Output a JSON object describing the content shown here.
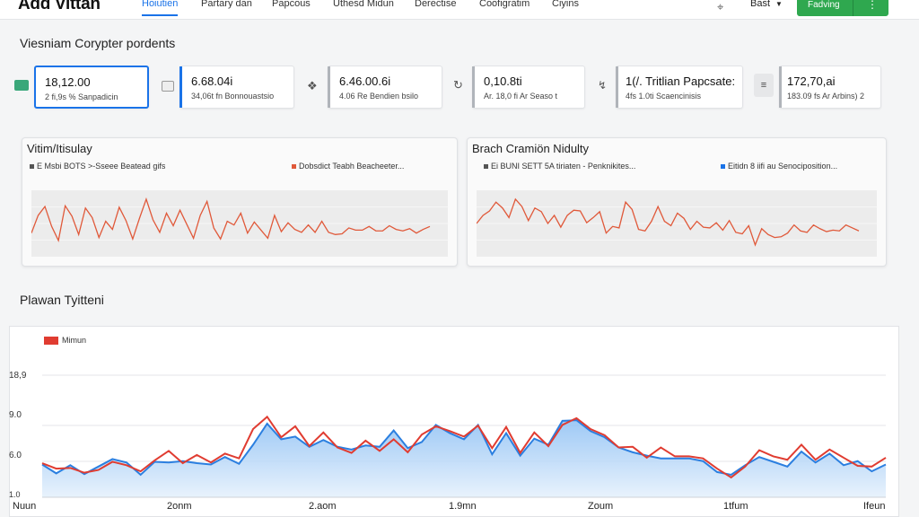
{
  "header": {
    "title": "Add Vittan",
    "tabs": [
      {
        "label": "Hoiutien",
        "active": true
      },
      {
        "label": "Partary dan"
      },
      {
        "label": "Papcous"
      },
      {
        "label": "Uthesd Midun"
      },
      {
        "label": "Derectise"
      },
      {
        "label": "Coofigratim"
      },
      {
        "label": "Ciyins"
      }
    ],
    "user_label": "Bast",
    "primary_button": "Fadving",
    "colors": {
      "accent": "#1a73e8",
      "primary": "#2fa84f"
    }
  },
  "overview": {
    "title": "Viesniam Corypter pordents",
    "kpis": [
      {
        "value": "18,12.00",
        "sub": "2 fi,9s % Sanpadicin",
        "icon": "card-icon"
      },
      {
        "value": "6.68.04i",
        "sub": "34,06t fn Bonnouastsio",
        "icon": "tag-icon"
      },
      {
        "value": "6.46.00.6i",
        "sub": "4.06 Re Bendien bsilo",
        "icon": "bookmark-icon"
      },
      {
        "value": "0,10.8ti",
        "sub": "Ar. 18,0 fi Ar Seaso t",
        "icon": "refresh-icon"
      },
      {
        "value": "1(/. Tritlian Papcsate:",
        "sub": "4fs 1.0ti Scaencinisis",
        "icon": "trend-icon"
      },
      {
        "value": "172,70,ai",
        "sub": "183.09 fs Ar Arbins) 2",
        "icon": "layers-icon"
      }
    ]
  },
  "mini_charts": [
    {
      "title": "Vitim/Itisulay",
      "legend": [
        {
          "label": "E Msbi BOTS >-Sseee Beatead gifs",
          "color": "#555555"
        },
        {
          "label": "Dobsdict Teabh Beacheeter...",
          "color": "#e0593a"
        }
      ]
    },
    {
      "title": "Brach Cramiön Nidulty",
      "legend": [
        {
          "label": "Ei BUNI SETT 5A tiriaten - Penknikites...",
          "color": "#555555"
        },
        {
          "label": "Eitidn 8 iifi au Senociposition...",
          "color": "#1a73e8"
        }
      ]
    }
  ],
  "main_chart": {
    "title": "Plawan Tyitteni",
    "legend": "Mimun",
    "yticks": [
      "18,9",
      "9.0",
      "6.0",
      "1.0"
    ],
    "xticks": [
      "Nuun",
      "2onm",
      "2.aom",
      "1.9mn",
      "Zoum",
      "1tfum",
      "Ifeun"
    ]
  },
  "chart_data": [
    {
      "type": "line",
      "title": "Vitim/Itisulay",
      "series": [
        {
          "name": "Dobsdict Teabh Beacheeter...",
          "color": "#e0593a",
          "values": [
            3.2,
            5.6,
            6.8,
            4.1,
            2.2,
            6.9,
            5.5,
            3.0,
            6.6,
            5.3,
            2.6,
            4.8,
            3.7,
            6.7,
            4.9,
            2.4,
            5.2,
            7.8,
            5.0,
            3.3,
            5.9,
            4.2,
            6.3,
            4.4,
            2.5,
            5.6,
            7.5,
            3.9,
            2.4,
            4.8,
            4.3,
            5.9,
            3.2,
            4.7,
            3.6,
            2.5,
            5.6,
            3.4,
            4.6,
            3.7,
            3.3,
            4.3,
            3.3,
            4.8,
            3.3,
            3.0,
            3.1,
            3.9,
            3.6,
            3.6,
            4.1,
            3.5,
            3.5,
            4.2,
            3.7,
            3.5,
            3.8,
            3.2,
            3.7,
            4.1
          ]
        }
      ]
    },
    {
      "type": "line",
      "title": "Brach Cramiön Nidulty",
      "series": [
        {
          "name": "Eitidn 8 iifi au Senociposition...",
          "color": "#e0593a",
          "values": [
            4.5,
            5.6,
            6.2,
            7.4,
            6.6,
            5.3,
            7.8,
            6.8,
            4.9,
            6.6,
            6.1,
            4.5,
            5.6,
            4.0,
            5.6,
            6.3,
            6.2,
            4.6,
            5.3,
            6.1,
            3.2,
            4.1,
            3.9,
            7.4,
            6.4,
            3.7,
            3.5,
            4.8,
            6.8,
            4.8,
            4.2,
            5.9,
            5.2,
            3.7,
            4.8,
            4.0,
            3.9,
            4.6,
            3.6,
            4.9,
            3.3,
            3.1,
            4.2,
            1.6,
            3.8,
            3.0,
            2.6,
            2.7,
            3.2,
            4.3,
            3.5,
            3.3,
            4.3,
            3.8,
            3.4,
            3.6,
            3.5,
            4.3,
            3.9,
            3.5
          ]
        }
      ]
    },
    {
      "type": "area",
      "title": "Plawan Tyitteni",
      "ylim": [
        1.0,
        18.9
      ],
      "series": [
        {
          "name": "Mimun",
          "color": "#e03c31",
          "values": [
            6.0,
            5.2,
            5.3,
            4.6,
            5.0,
            6.2,
            5.7,
            4.8,
            6.4,
            7.8,
            6.0,
            7.2,
            6.1,
            7.4,
            6.7,
            11.0,
            12.8,
            9.8,
            11.4,
            8.5,
            10.5,
            8.3,
            7.5,
            9.3,
            7.8,
            9.5,
            7.6,
            10.2,
            11.4,
            10.7,
            9.9,
            11.5,
            8.2,
            11.3,
            7.5,
            10.5,
            8.5,
            11.6,
            12.6,
            11.0,
            10.1,
            8.3,
            8.4,
            6.8,
            8.3,
            7.0,
            7.0,
            6.7,
            5.2,
            3.9,
            5.5,
            7.9,
            7.0,
            6.5,
            8.7,
            6.5,
            8.0,
            6.8,
            5.6,
            5.5,
            6.8
          ]
        },
        {
          "name": "Mimun (area)",
          "color": "#2b7fe0",
          "values": [
            5.8,
            4.5,
            5.7,
            4.4,
            5.5,
            6.6,
            6.1,
            4.3,
            6.2,
            6.1,
            6.3,
            6.0,
            5.8,
            6.9,
            5.9,
            8.7,
            11.8,
            9.5,
            9.9,
            8.4,
            9.4,
            8.4,
            8.0,
            8.6,
            8.4,
            10.8,
            8.2,
            9.1,
            11.6,
            10.4,
            9.5,
            11.6,
            7.3,
            10.4,
            7.1,
            9.6,
            8.7,
            12.2,
            12.3,
            10.7,
            9.8,
            8.3,
            7.6,
            7.1,
            6.7,
            6.7,
            6.7,
            6.3,
            4.7,
            4.3,
            5.7,
            6.9,
            6.2,
            5.5,
            7.7,
            6.1,
            7.4,
            5.7,
            6.3,
            4.8,
            5.8
          ]
        }
      ]
    }
  ]
}
